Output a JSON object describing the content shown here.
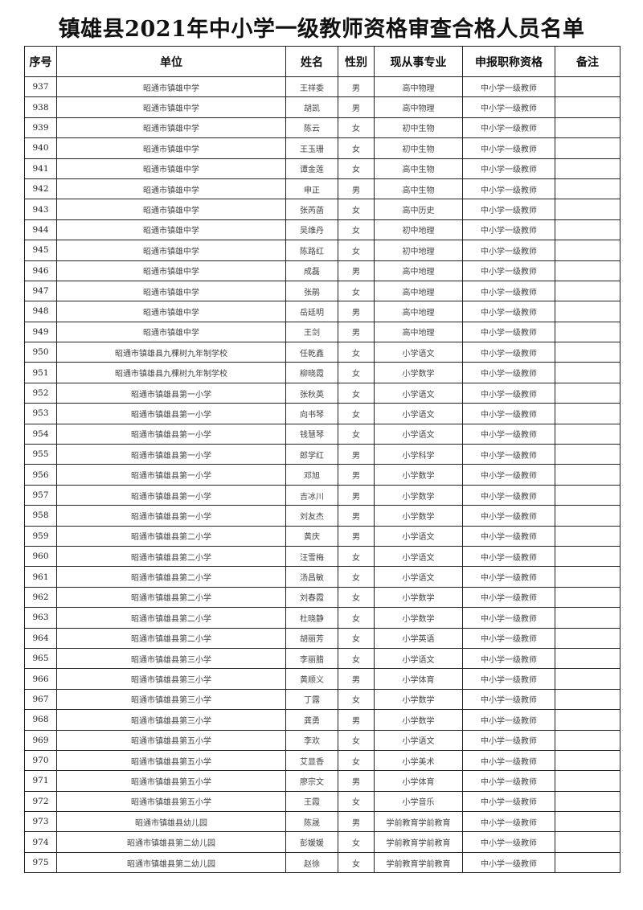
{
  "title": "镇雄县2021年中小学一级教师资格审查合格人员名单",
  "headers": [
    "序号",
    "单位",
    "姓名",
    "性别",
    "现从事专业",
    "申报职称资格",
    "备注"
  ],
  "rows": [
    [
      "937",
      "昭通市镇雄中学",
      "王祥委",
      "男",
      "高中物理",
      "中小学一级教师",
      ""
    ],
    [
      "938",
      "昭通市镇雄中学",
      "胡凯",
      "男",
      "高中物理",
      "中小学一级教师",
      ""
    ],
    [
      "939",
      "昭通市镇雄中学",
      "陈云",
      "女",
      "初中生物",
      "中小学一级教师",
      ""
    ],
    [
      "940",
      "昭通市镇雄中学",
      "王玉珊",
      "女",
      "初中生物",
      "中小学一级教师",
      ""
    ],
    [
      "941",
      "昭通市镇雄中学",
      "谭金莲",
      "女",
      "高中生物",
      "中小学一级教师",
      ""
    ],
    [
      "942",
      "昭通市镇雄中学",
      "申正",
      "男",
      "高中生物",
      "中小学一级教师",
      ""
    ],
    [
      "943",
      "昭通市镇雄中学",
      "张芮菡",
      "女",
      "高中历史",
      "中小学一级教师",
      ""
    ],
    [
      "944",
      "昭通市镇雄中学",
      "吴维丹",
      "女",
      "初中地理",
      "中小学一级教师",
      ""
    ],
    [
      "945",
      "昭通市镇雄中学",
      "陈路红",
      "女",
      "初中地理",
      "中小学一级教师",
      ""
    ],
    [
      "946",
      "昭通市镇雄中学",
      "成磊",
      "男",
      "高中地理",
      "中小学一级教师",
      ""
    ],
    [
      "947",
      "昭通市镇雄中学",
      "张鹃",
      "女",
      "高中地理",
      "中小学一级教师",
      ""
    ],
    [
      "948",
      "昭通市镇雄中学",
      "岳廷明",
      "男",
      "高中地理",
      "中小学一级教师",
      ""
    ],
    [
      "949",
      "昭通市镇雄中学",
      "王剑",
      "男",
      "高中地理",
      "中小学一级教师",
      ""
    ],
    [
      "950",
      "昭通市镇雄县九棵树九年制学校",
      "任乾鑫",
      "女",
      "小学语文",
      "中小学一级教师",
      ""
    ],
    [
      "951",
      "昭通市镇雄县九棵树九年制学校",
      "柳晓霞",
      "女",
      "小学数学",
      "中小学一级教师",
      ""
    ],
    [
      "952",
      "昭通市镇雄县第一小学",
      "张秋英",
      "女",
      "小学语文",
      "中小学一级教师",
      ""
    ],
    [
      "953",
      "昭通市镇雄县第一小学",
      "向书琴",
      "女",
      "小学语文",
      "中小学一级教师",
      ""
    ],
    [
      "954",
      "昭通市镇雄县第一小学",
      "钱慧琴",
      "女",
      "小学语文",
      "中小学一级教师",
      ""
    ],
    [
      "955",
      "昭通市镇雄县第一小学",
      "郎学红",
      "男",
      "小学科学",
      "中小学一级教师",
      ""
    ],
    [
      "956",
      "昭通市镇雄县第一小学",
      "邓旭",
      "男",
      "小学数学",
      "中小学一级教师",
      ""
    ],
    [
      "957",
      "昭通市镇雄县第一小学",
      "吉冰川",
      "男",
      "小学数学",
      "中小学一级教师",
      ""
    ],
    [
      "958",
      "昭通市镇雄县第一小学",
      "刘友杰",
      "男",
      "小学数学",
      "中小学一级教师",
      ""
    ],
    [
      "959",
      "昭通市镇雄县第二小学",
      "黄庆",
      "男",
      "小学语文",
      "中小学一级教师",
      ""
    ],
    [
      "960",
      "昭通市镇雄县第二小学",
      "汪雪梅",
      "女",
      "小学语文",
      "中小学一级教师",
      ""
    ],
    [
      "961",
      "昭通市镇雄县第二小学",
      "汤昌敏",
      "女",
      "小学语文",
      "中小学一级教师",
      ""
    ],
    [
      "962",
      "昭通市镇雄县第二小学",
      "刘春霞",
      "女",
      "小学数学",
      "中小学一级教师",
      ""
    ],
    [
      "963",
      "昭通市镇雄县第二小学",
      "杜晓静",
      "女",
      "小学数学",
      "中小学一级教师",
      ""
    ],
    [
      "964",
      "昭通市镇雄县第二小学",
      "胡丽芳",
      "女",
      "小学英语",
      "中小学一级教师",
      ""
    ],
    [
      "965",
      "昭通市镇雄县第三小学",
      "李丽腊",
      "女",
      "小学语文",
      "中小学一级教师",
      ""
    ],
    [
      "966",
      "昭通市镇雄县第三小学",
      "黄顺义",
      "男",
      "小学体育",
      "中小学一级教师",
      ""
    ],
    [
      "967",
      "昭通市镇雄县第三小学",
      "丁露",
      "女",
      "小学数学",
      "中小学一级教师",
      ""
    ],
    [
      "968",
      "昭通市镇雄县第三小学",
      "龚勇",
      "男",
      "小学数学",
      "中小学一级教师",
      ""
    ],
    [
      "969",
      "昭通市镇雄县第五小学",
      "李欢",
      "女",
      "小学语文",
      "中小学一级教师",
      ""
    ],
    [
      "970",
      "昭通市镇雄县第五小学",
      "艾显香",
      "女",
      "小学美术",
      "中小学一级教师",
      ""
    ],
    [
      "971",
      "昭通市镇雄县第五小学",
      "廖宗文",
      "男",
      "小学体育",
      "中小学一级教师",
      ""
    ],
    [
      "972",
      "昭通市镇雄县第五小学",
      "王霞",
      "女",
      "小学音乐",
      "中小学一级教师",
      ""
    ],
    [
      "973",
      "昭通市镇雄县幼儿园",
      "陈晟",
      "男",
      "学前教育学前教育",
      "中小学一级教师",
      ""
    ],
    [
      "974",
      "昭通市镇雄县第二幼儿园",
      "彭媛媛",
      "女",
      "学前教育学前教育",
      "中小学一级教师",
      ""
    ],
    [
      "975",
      "昭通市镇雄县第二幼儿园",
      "赵徐",
      "女",
      "学前教育学前教育",
      "中小学一级教师",
      ""
    ]
  ]
}
